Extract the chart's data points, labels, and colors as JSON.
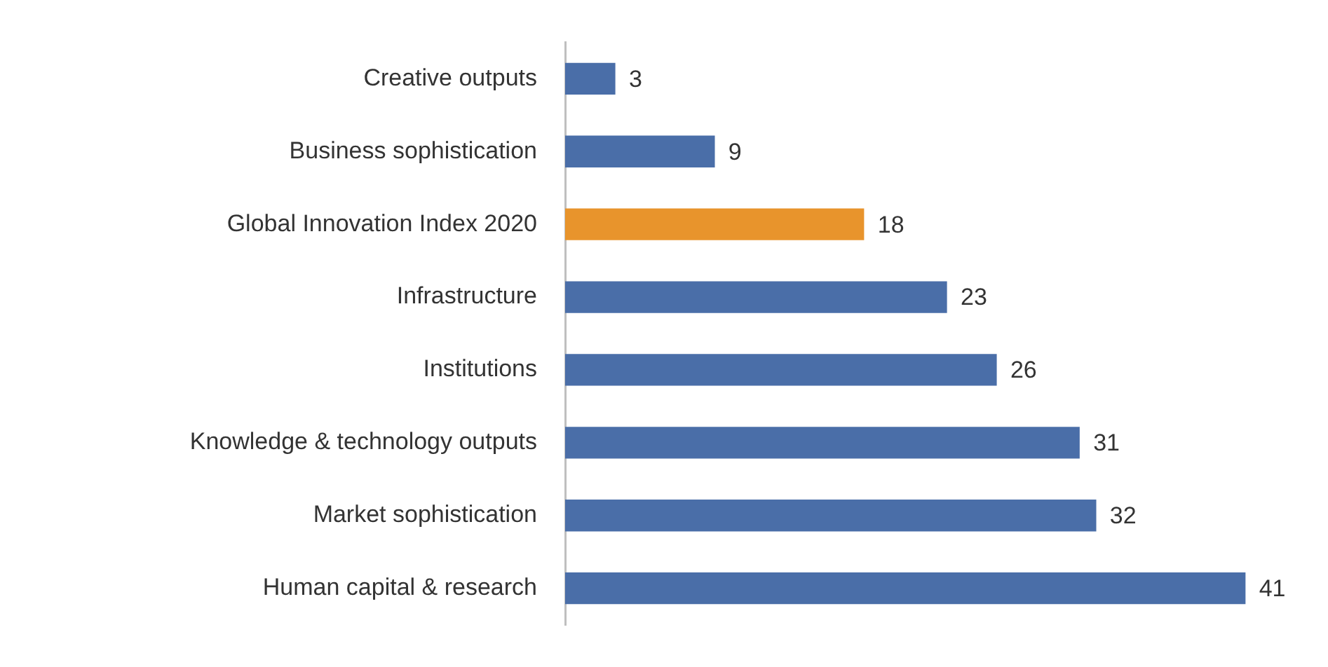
{
  "chart_data": {
    "type": "bar",
    "orientation": "horizontal",
    "categories": [
      "Creative outputs",
      "Business sophistication",
      "Global Innovation Index 2020",
      "Infrastructure",
      "Institutions",
      "Knowledge & technology outputs",
      "Market sophistication",
      "Human capital & research"
    ],
    "values": [
      3,
      9,
      18,
      23,
      26,
      31,
      32,
      41
    ],
    "colors": [
      "#4a6ea8",
      "#4a6ea8",
      "#e8942c",
      "#4a6ea8",
      "#4a6ea8",
      "#4a6ea8",
      "#4a6ea8",
      "#4a6ea8"
    ],
    "data_labels": true,
    "grid": false,
    "legend": false,
    "tick_labels": "y"
  }
}
